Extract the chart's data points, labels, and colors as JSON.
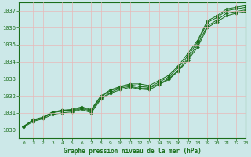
{
  "title": "Graphe pression niveau de la mer (hPa)",
  "xlim": [
    -0.5,
    23
  ],
  "ylim": [
    1029.5,
    1037.5
  ],
  "yticks": [
    1030,
    1031,
    1032,
    1033,
    1034,
    1035,
    1036,
    1037
  ],
  "xticks": [
    0,
    1,
    2,
    3,
    4,
    5,
    6,
    7,
    8,
    9,
    10,
    11,
    12,
    13,
    14,
    15,
    16,
    17,
    18,
    19,
    20,
    21,
    22,
    23
  ],
  "bg_color": "#cce8e8",
  "grid_color": "#b8d8d8",
  "line_color": "#1a6e1a",
  "marker_color": "#1a6e1a",
  "series1": [
    1030.2,
    1030.55,
    1030.7,
    1031.0,
    1031.1,
    1031.1,
    1031.25,
    1031.1,
    1031.85,
    1032.2,
    1032.45,
    1032.55,
    1032.45,
    1032.45,
    1032.7,
    1033.0,
    1033.5,
    1034.2,
    1035.0,
    1036.1,
    1036.45,
    1036.85,
    1036.95,
    1037.05
  ],
  "series2": [
    1030.2,
    1030.6,
    1030.7,
    1031.05,
    1031.15,
    1031.15,
    1031.3,
    1031.15,
    1031.95,
    1032.3,
    1032.5,
    1032.65,
    1032.55,
    1032.5,
    1032.8,
    1033.1,
    1033.65,
    1034.35,
    1035.15,
    1036.3,
    1036.6,
    1037.0,
    1037.1,
    1037.2
  ],
  "series3": [
    1030.2,
    1030.6,
    1030.75,
    1031.05,
    1031.15,
    1031.2,
    1031.35,
    1031.2,
    1032.0,
    1032.35,
    1032.55,
    1032.7,
    1032.7,
    1032.6,
    1032.9,
    1033.2,
    1033.75,
    1034.5,
    1035.25,
    1036.4,
    1036.7,
    1037.1,
    1037.2,
    1037.3
  ],
  "series4": [
    1030.15,
    1030.5,
    1030.65,
    1030.9,
    1031.0,
    1031.05,
    1031.2,
    1031.0,
    1031.8,
    1032.15,
    1032.35,
    1032.5,
    1032.4,
    1032.35,
    1032.65,
    1032.95,
    1033.45,
    1034.1,
    1034.85,
    1036.0,
    1036.35,
    1036.7,
    1036.85,
    1036.95
  ]
}
